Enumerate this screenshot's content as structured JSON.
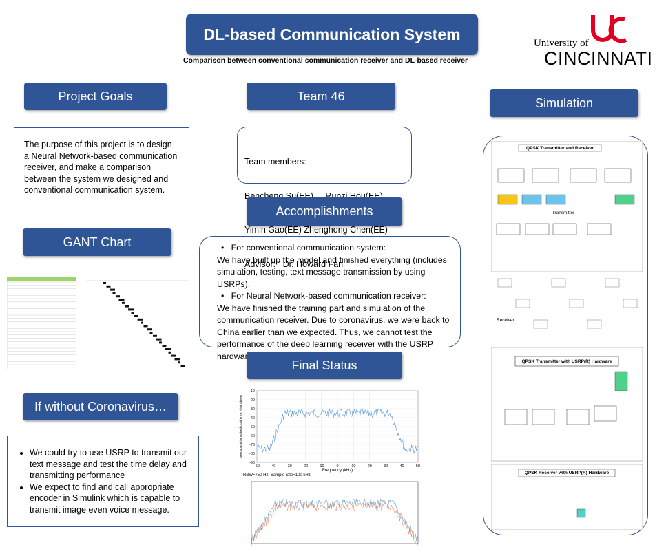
{
  "header": {
    "title": "DL-based Communication System",
    "subtitle": "Comparison between conventional communication receiver and DL-based receiver",
    "logo_top": "University of",
    "logo_bottom": "CINCINNATI"
  },
  "project_goals": {
    "title": "Project Goals",
    "text": "The purpose of this project is to design a Neural Network-based communication receiver, and make a comparison between the system we designed and conventional communication system."
  },
  "gant_chart": {
    "title": "GANT Chart"
  },
  "if_without": {
    "title": "If without Coronavirus…",
    "bullets": [
      "We could try to use USRP to transmit our text message and test the time delay and transmitting  performance",
      "We expect to find and call appropriate encoder in Simulink which is capable to transmit image even voice message."
    ]
  },
  "team": {
    "title": "Team 46",
    "lines": [
      "Team members:",
      "Bencheng Su(EE)     Runzi Hou(EE)",
      "Yimin Gao(EE) Zhenghong Chen(EE)",
      "Advisor:   Dr. Howard Fan"
    ]
  },
  "accomplishments": {
    "title": "Accomplishments",
    "items": [
      {
        "bullet": "For conventional communication system:",
        "text": "We have built up the model and finished everything (includes simulation, testing, text message transmission by using USRPs)."
      },
      {
        "bullet": "For Neural Network-based communication receiver:",
        "text": "We have finished the training part and simulation of the communication receiver.  Due to coronavirus, we were back to China earlier than we expected. Thus, we cannot test the performance of the deep learning receiver with the USRP hardware."
      }
    ]
  },
  "final_status": {
    "title": "Final Status",
    "plot": {
      "ylabel": "Spectrum after Raised Cosine Tx Filter (dBW)",
      "xlabel": "Frequency (kHz)",
      "note": "RBW=750 Hz, Sample rate=100 kHz",
      "xlim": [
        -50,
        50
      ],
      "ylim": [
        -90,
        -10
      ],
      "xticks": [
        -50,
        -40,
        -30,
        -20,
        -10,
        0,
        10,
        20,
        30,
        40,
        50
      ],
      "yticks": [
        -10,
        -20,
        -30,
        -40,
        -50,
        -60,
        -70,
        -80,
        -90
      ]
    }
  },
  "simulation": {
    "title": "Simulation",
    "panels": [
      "QPSK Transmitter and Receiver",
      "Transmitter",
      "Receiver",
      "QPSK Transmitter with USRP(R) Hardware",
      "QPSK Receiver with USRP(R) Hardware"
    ]
  }
}
